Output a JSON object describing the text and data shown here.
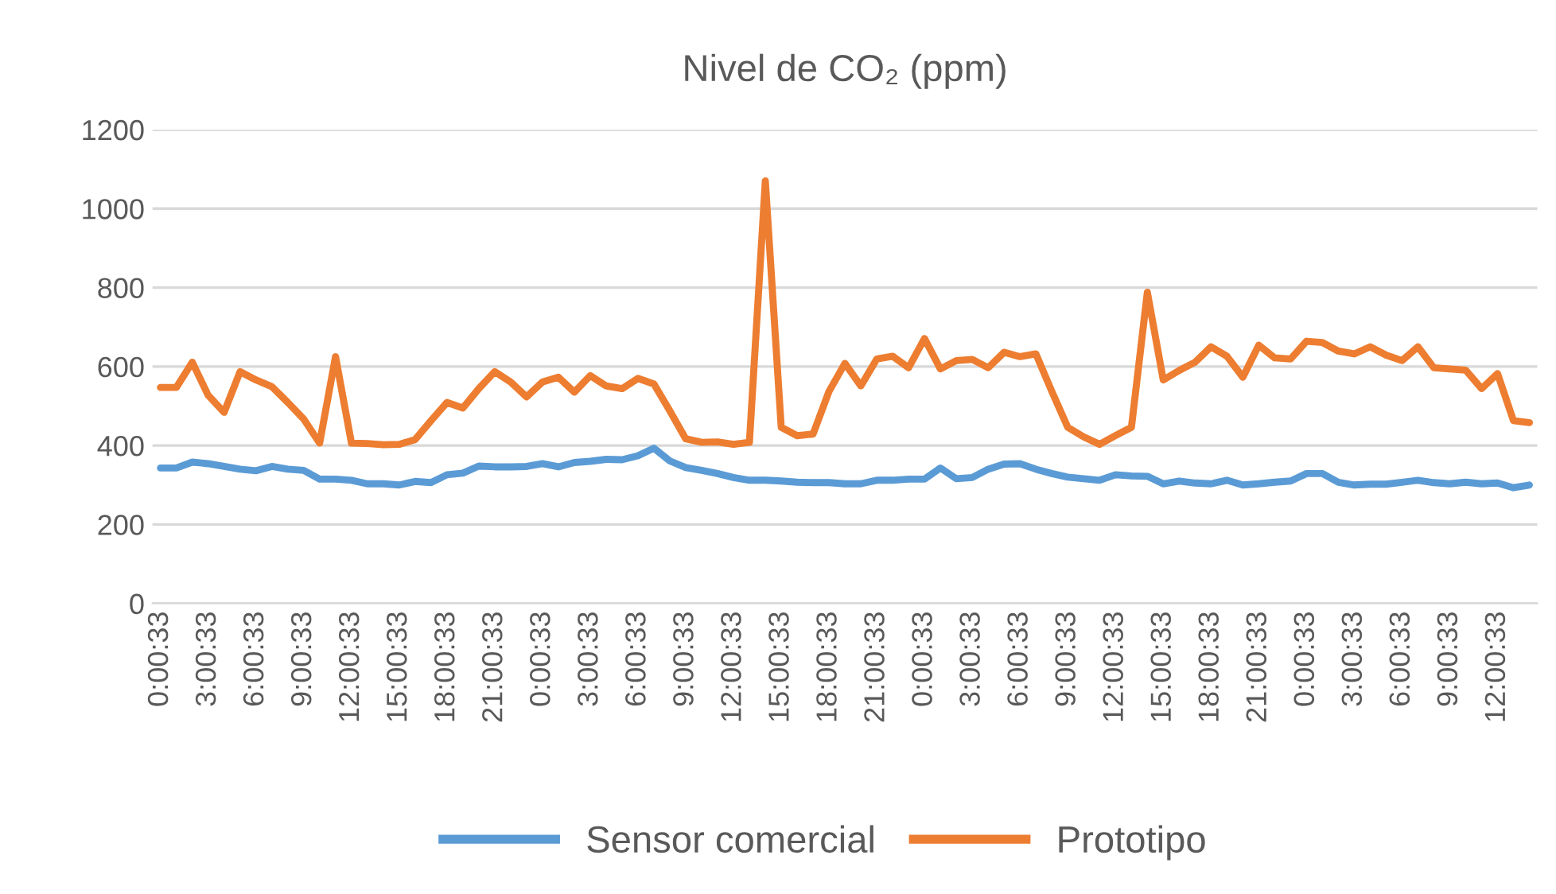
{
  "chart_data": {
    "type": "line",
    "title": "Nivel de CO₂ (ppm)",
    "categories": [
      "0:00:33",
      null,
      null,
      "3:00:33",
      null,
      null,
      "6:00:33",
      null,
      null,
      "9:00:33",
      null,
      null,
      "12:00:33",
      null,
      null,
      "15:00:33",
      null,
      null,
      "18:00:33",
      null,
      null,
      "21:00:33",
      null,
      null,
      "0:00:33",
      null,
      null,
      "3:00:33",
      null,
      null,
      "6:00:33",
      null,
      null,
      "9:00:33",
      null,
      null,
      "12:00:33",
      null,
      null,
      "15:00:33",
      null,
      null,
      "18:00:33",
      null,
      null,
      "21:00:33",
      null,
      null,
      "0:00:33",
      null,
      null,
      "3:00:33",
      null,
      null,
      "6:00:33",
      null,
      null,
      "9:00:33",
      null,
      null,
      "12:00:33",
      null,
      null,
      "15:00:33",
      null,
      null,
      "18:00:33",
      null,
      null,
      "21:00:33",
      null,
      null,
      "0:00:33",
      null,
      null,
      "3:00:33",
      null,
      null,
      "6:00:33",
      null,
      null,
      "9:00:33",
      null,
      null,
      "12:00:33",
      null,
      null
    ],
    "series": [
      {
        "name": "Sensor comercial",
        "color": "#5b9bd5",
        "values": [
          343,
          343,
          358,
          354,
          347,
          340,
          336,
          347,
          340,
          337,
          315,
          315,
          312,
          303,
          303,
          300,
          309,
          306,
          326,
          330,
          348,
          346,
          346,
          347,
          354,
          346,
          357,
          360,
          365,
          364,
          374,
          393,
          361,
          344,
          337,
          329,
          319,
          312,
          312,
          310,
          307,
          306,
          306,
          303,
          303,
          312,
          312,
          315,
          315,
          343,
          316,
          319,
          340,
          353,
          354,
          340,
          329,
          320,
          316,
          312,
          326,
          323,
          322,
          303,
          310,
          305,
          303,
          312,
          300,
          303,
          307,
          310,
          329,
          329,
          307,
          300,
          302,
          302,
          307,
          312,
          306,
          303,
          307,
          303,
          305,
          293,
          300
        ]
      },
      {
        "name": "Prototipo",
        "color": "#ed7d31",
        "values": [
          547,
          547,
          611,
          527,
          484,
          587,
          566,
          549,
          509,
          467,
          406,
          625,
          406,
          405,
          402,
          403,
          415,
          463,
          509,
          495,
          544,
          587,
          561,
          523,
          561,
          573,
          535,
          577,
          551,
          544,
          570,
          556,
          488,
          417,
          408,
          409,
          403,
          408,
          1070,
          446,
          425,
          429,
          537,
          608,
          551,
          619,
          626,
          597,
          671,
          594,
          615,
          618,
          597,
          636,
          625,
          632,
          537,
          446,
          422,
          403,
          425,
          446,
          788,
          566,
          590,
          611,
          650,
          626,
          573,
          654,
          622,
          619,
          664,
          661,
          639,
          632,
          650,
          629,
          615,
          650,
          597,
          594,
          591,
          544,
          582,
          463,
          458
        ]
      }
    ],
    "ylim": [
      0,
      1200
    ],
    "yticks": [
      0,
      200,
      400,
      600,
      800,
      1000,
      1200
    ],
    "grid": "y",
    "legend": "bottom",
    "marker": "none",
    "line_style": "solid"
  }
}
